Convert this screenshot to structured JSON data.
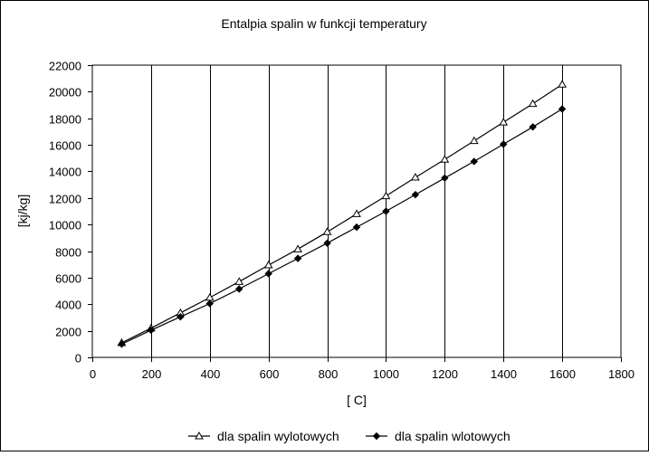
{
  "chart_data": {
    "type": "line",
    "title": "Entalpia spalin w funkcji temperatury",
    "xlabel": "[ C]",
    "ylabel": "[kj/kg]",
    "xlim": [
      0,
      1800
    ],
    "ylim": [
      0,
      22000
    ],
    "x_ticks": [
      0,
      200,
      400,
      600,
      800,
      1000,
      1200,
      1400,
      1600,
      1800
    ],
    "y_ticks": [
      0,
      2000,
      4000,
      6000,
      8000,
      10000,
      12000,
      14000,
      16000,
      18000,
      20000,
      22000
    ],
    "grid": "vertical",
    "legend_position": "bottom",
    "series": [
      {
        "name": "dla spalin wylotowych",
        "marker": "triangle",
        "x": [
          100,
          200,
          300,
          400,
          500,
          600,
          700,
          800,
          900,
          1000,
          1100,
          1200,
          1300,
          1400,
          1500,
          1600
        ],
        "y": [
          1100,
          2200,
          3350,
          4500,
          5700,
          6950,
          8150,
          9450,
          10800,
          12150,
          13550,
          14900,
          16300,
          17700,
          19100,
          20550
        ]
      },
      {
        "name": "dla spalin wlotowych",
        "marker": "diamond",
        "x": [
          100,
          200,
          300,
          400,
          500,
          600,
          700,
          800,
          900,
          1000,
          1100,
          1200,
          1300,
          1400,
          1500,
          1600
        ],
        "y": [
          1000,
          2050,
          3050,
          4050,
          5150,
          6300,
          7450,
          8600,
          9800,
          11000,
          12250,
          13500,
          14750,
          16050,
          17350,
          18700
        ]
      }
    ]
  }
}
